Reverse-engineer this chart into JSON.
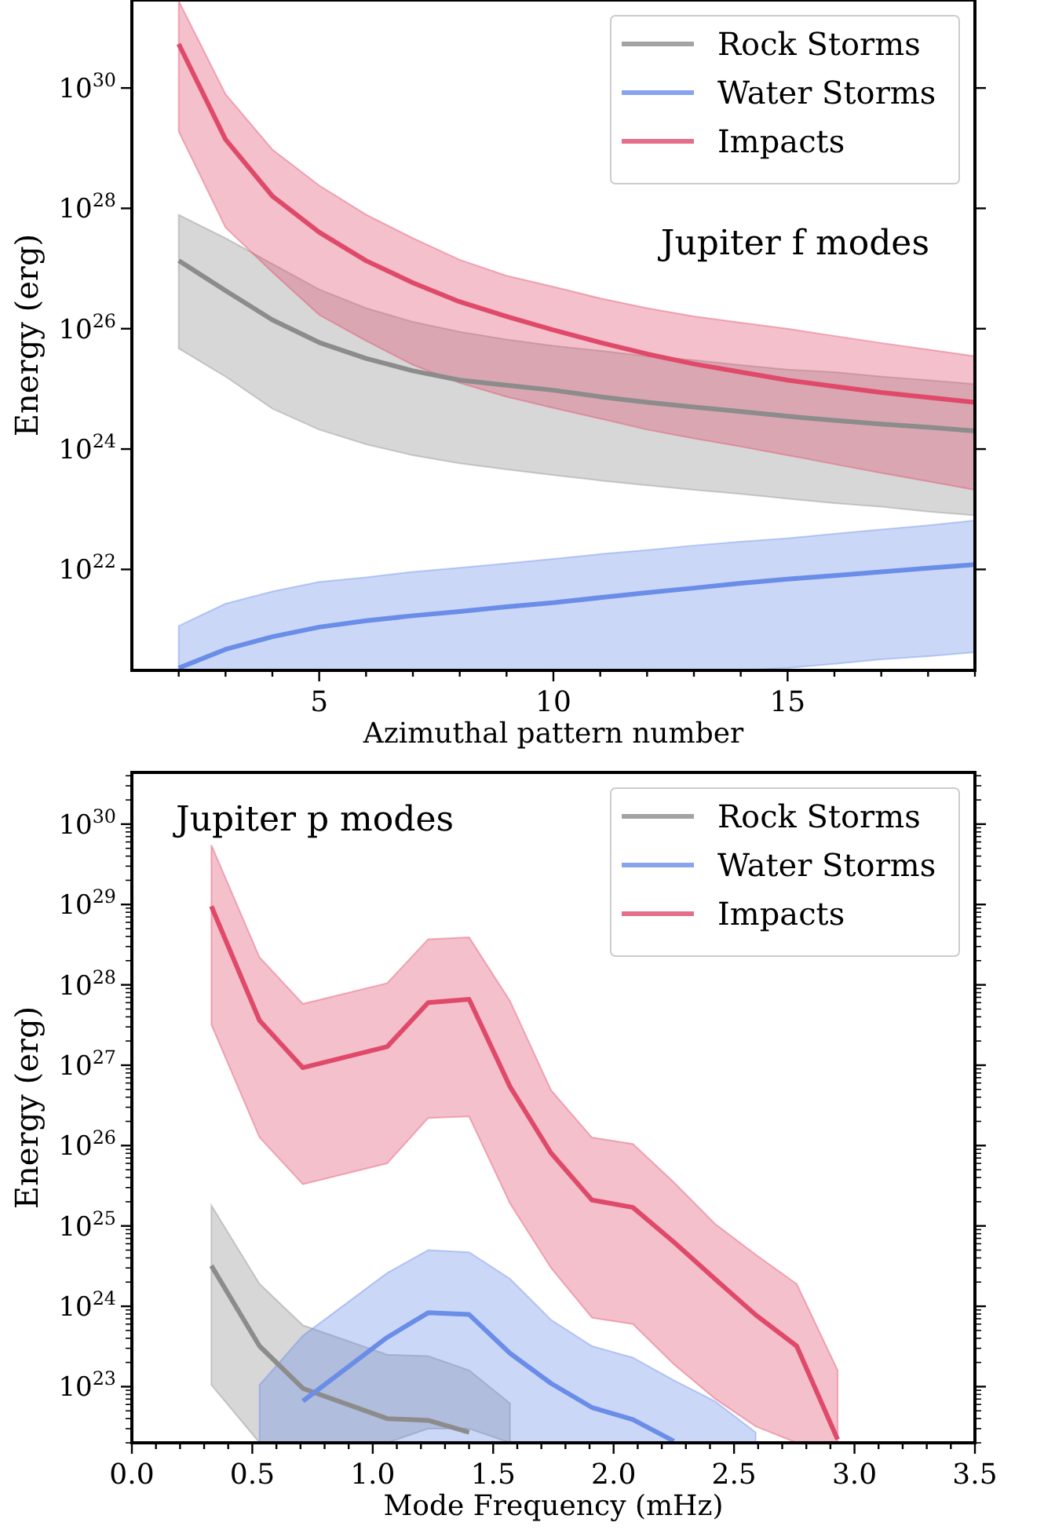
{
  "chart_data": [
    {
      "type": "line",
      "annotations": [
        "Jupiter f modes"
      ],
      "xlabel": "Azimuthal pattern number",
      "ylabel": "Energy (erg)",
      "log": "y",
      "legend": "top right",
      "grid": false,
      "x": [
        2,
        3,
        4,
        5,
        6,
        7,
        8,
        9,
        10,
        11,
        12,
        13,
        14,
        15,
        16,
        17,
        18,
        19
      ],
      "xlim": [
        1,
        19
      ],
      "xticks": [
        {
          "value": 2,
          "label": null
        },
        {
          "value": 3,
          "label": null
        },
        {
          "value": 4,
          "label": null
        },
        5,
        {
          "value": 6,
          "label": null
        },
        {
          "value": 7,
          "label": null
        },
        {
          "value": 8,
          "label": null
        },
        {
          "value": 9,
          "label": null
        },
        10,
        {
          "value": 11,
          "label": null
        },
        {
          "value": 12,
          "label": null
        },
        {
          "value": 13,
          "label": null
        },
        {
          "value": 14,
          "label": null
        },
        15,
        {
          "value": 16,
          "label": null
        },
        {
          "value": 17,
          "label": null
        },
        {
          "value": 18,
          "label": null
        },
        {
          "value": 19,
          "label": null
        }
      ],
      "ylim": [
        2.1e+20,
        2.9e+31
      ],
      "yticks": [
        {
          "value": 1e+22,
          "label": "10$^{22}$"
        },
        {
          "value": 1e+24,
          "label": "10$^{24}$"
        },
        {
          "value": 1e+26,
          "label": "10$^{26}$"
        },
        {
          "value": 1e+28,
          "label": "10$^{28}$"
        },
        {
          "value": 1e+30,
          "label": "10$^{30}$"
        }
      ],
      "series": [
        {
          "name": "Rock Storms",
          "color": "#8c8c8c",
          "values": [
            1.35e+27,
            4.3e+26,
            1.4e+26,
            5.9e+25,
            3.2e+25,
            2e+25,
            1.4e+25,
            1.15e+25,
            9.5e+24,
            7.4e+24,
            6e+24,
            5e+24,
            4.2e+24,
            3.5e+24,
            3e+24,
            2.6e+24,
            2.3e+24,
            2e+24
          ],
          "upper": [
            7.8e+27,
            3.2e+27,
            1.2e+27,
            4.5e+26,
            2.2e+26,
            1.3e+26,
            8.9e+25,
            6.6e+25,
            5.2e+25,
            4.3e+25,
            3.5e+25,
            3e+25,
            2.5e+25,
            2.1e+25,
            1.9e+25,
            1.6e+25,
            1.4e+25,
            1.2e+25
          ],
          "lower": [
            4.7e+25,
            1.6e+25,
            4.7e+24,
            2.1e+24,
            1.2e+24,
            7.9e+23,
            5.8e+23,
            4.6e+23,
            3.7e+23,
            3e+23,
            2.5e+23,
            2.1e+23,
            1.8e+23,
            1.5e+23,
            1.26e+23,
            1.1e+23,
            9.1e+22,
            7.9e+22
          ]
        },
        {
          "name": "Water Storms",
          "color": "#6a8de8",
          "values": [
            2.3e+20,
            4.7e+20,
            7.6e+20,
            1.1e+21,
            1.4e+21,
            1.7e+21,
            2e+21,
            2.4e+21,
            2.8e+21,
            3.4e+21,
            4.1e+21,
            4.9e+21,
            5.9e+21,
            6.9e+21,
            7.9e+21,
            9.1e+21,
            1.05e+22,
            1.2e+22
          ],
          "upper": [
            1.15e+21,
            2.7e+21,
            4.3e+21,
            6.2e+21,
            7.4e+21,
            9.1e+21,
            1.07e+22,
            1.26e+22,
            1.5e+22,
            1.8e+22,
            2.1e+22,
            2.5e+22,
            2.9e+22,
            3.3e+22,
            3.9e+22,
            4.6e+22,
            5.4e+22,
            6.5e+22
          ],
          "lower": [
            2.1e+20,
            2.1e+20,
            2.1e+20,
            2.1e+20,
            2.1e+20,
            2.1e+20,
            2.1e+20,
            2.1e+20,
            2.1e+20,
            2.1e+20,
            2.1e+20,
            2.1e+20,
            2.1e+20,
            2.3e+20,
            2.7e+20,
            3.2e+20,
            3.6e+20,
            4.2e+20
          ]
        },
        {
          "name": "Impacts",
          "color": "#e04a6a",
          "values": [
            5.4e+30,
            1.4e+29,
            1.6e+28,
            4e+27,
            1.35e+27,
            5.8e+26,
            2.8e+26,
            1.6e+26,
            9.5e+25,
            5.9e+25,
            3.8e+25,
            2.6e+25,
            1.9e+25,
            1.4e+25,
            1.1e+25,
            8.7e+24,
            7.2e+24,
            6e+24
          ],
          "upper": [
            2.8e+31,
            7.9e+29,
            9.5e+28,
            2.4e+28,
            7.9e+27,
            3.2e+27,
            1.4e+27,
            7.6e+26,
            5e+26,
            3.2e+26,
            2.2e+26,
            1.6e+26,
            1.26e+26,
            1e+26,
            7.6e+25,
            5.8e+25,
            4.5e+25,
            3.5e+25
          ],
          "lower": [
            1.9e+29,
            4.8e+27,
            8.7e+26,
            1.7e+26,
            6.3e+25,
            2.5e+25,
            1.26e+25,
            7.4e+24,
            4.8e+24,
            3.2e+24,
            2.1e+24,
            1.5e+24,
            1.1e+24,
            7.9e+23,
            5.6e+23,
            4e+23,
            2.9e+23,
            2.1e+23
          ]
        }
      ]
    },
    {
      "type": "line",
      "annotations": [
        "Jupiter p modes"
      ],
      "xlabel": "Mode Frequency (mHz)",
      "ylabel": "Energy (erg)",
      "log": "y",
      "legend": "top right",
      "grid": false,
      "x": [
        0.33,
        0.53,
        0.71,
        1.06,
        1.23,
        1.4,
        1.57,
        1.74,
        1.91,
        2.08,
        2.25,
        2.42,
        2.59,
        2.76,
        2.93
      ],
      "xlim": [
        0,
        3.5
      ],
      "xticks": [
        {
          "value": 0,
          "label": "0.0"
        },
        {
          "value": 0.1,
          "label": null
        },
        {
          "value": 0.2,
          "label": null
        },
        {
          "value": 0.3,
          "label": null
        },
        {
          "value": 0.4,
          "label": null
        },
        0.5,
        {
          "value": 0.6,
          "label": null
        },
        {
          "value": 0.7,
          "label": null
        },
        {
          "value": 0.8,
          "label": null
        },
        {
          "value": 0.9,
          "label": null
        },
        {
          "value": 1,
          "label": "1.0"
        },
        {
          "value": 1.1,
          "label": null
        },
        {
          "value": 1.2,
          "label": null
        },
        {
          "value": 1.3,
          "label": null
        },
        {
          "value": 1.4,
          "label": null
        },
        1.5,
        {
          "value": 1.6,
          "label": null
        },
        {
          "value": 1.7,
          "label": null
        },
        {
          "value": 1.8,
          "label": null
        },
        {
          "value": 1.9,
          "label": null
        },
        {
          "value": 2,
          "label": "2.0"
        },
        {
          "value": 2.1,
          "label": null
        },
        {
          "value": 2.2,
          "label": null
        },
        {
          "value": 2.3,
          "label": null
        },
        {
          "value": 2.4,
          "label": null
        },
        2.5,
        {
          "value": 2.6,
          "label": null
        },
        {
          "value": 2.7,
          "label": null
        },
        {
          "value": 2.8,
          "label": null
        },
        {
          "value": 2.9,
          "label": null
        },
        {
          "value": 3,
          "label": "3.0"
        },
        {
          "value": 3.1,
          "label": null
        },
        {
          "value": 3.2,
          "label": null
        },
        {
          "value": 3.3,
          "label": null
        },
        {
          "value": 3.4,
          "label": null
        },
        3.5
      ],
      "ylim": [
        2e+22,
        4.4e+30
      ],
      "yticks": [
        {
          "value": 1e+23,
          "label": "10$^{23}$"
        },
        {
          "value": 1e+24,
          "label": "10$^{24}$"
        },
        {
          "value": 1e+25,
          "label": "10$^{25}$"
        },
        {
          "value": 1e+26,
          "label": "10$^{26}$"
        },
        {
          "value": 1e+27,
          "label": "10$^{27}$"
        },
        {
          "value": 1e+28,
          "label": "10$^{28}$"
        },
        {
          "value": 1e+29,
          "label": "10$^{29}$"
        },
        {
          "value": 1e+30,
          "label": "10$^{30}$"
        }
      ],
      "series": [
        {
          "name": "Rock Storms",
          "color": "#8c8c8c",
          "x": [
            0.33,
            0.53,
            0.71,
            1.06,
            1.23,
            1.4,
            1.57
          ],
          "values": [
            3.2e+24,
            3.2e+23,
            9.5e+22,
            4e+22,
            3.8e+22,
            2.7e+22,
            null
          ],
          "upper": [
            1.8e+25,
            1.9e+24,
            5.8e+23,
            2.5e+23,
            2.4e+23,
            1.6e+23,
            6.2e+22
          ],
          "lower": [
            1.05e+23,
            2e+22,
            2e+22,
            2e+22,
            3e+22,
            3e+22,
            2e+22
          ]
        },
        {
          "name": "Water Storms",
          "color": "#6a8de8",
          "x": [
            0.53,
            0.71,
            1.06,
            1.23,
            1.4,
            1.57,
            1.74,
            1.91,
            2.08,
            2.25,
            2.42,
            2.59
          ],
          "values": [
            null,
            6.6e+22,
            4.1e+23,
            8.3e+23,
            7.9e+23,
            2.6e+23,
            1.1e+23,
            5.5e+22,
            3.9e+22,
            2.1e+22,
            null,
            null
          ],
          "upper": [
            1.05e+23,
            4.3e+23,
            2.6e+24,
            5e+24,
            4.7e+24,
            2.2e+24,
            6.8e+23,
            3.2e+23,
            2.3e+23,
            1.2e+23,
            6.6e+22,
            2.7e+22
          ],
          "lower": [
            2e+22,
            2e+22,
            2e+22,
            2e+22,
            2e+22,
            2e+22,
            2e+22,
            2e+22,
            2e+22,
            2e+22,
            2e+22,
            2e+22
          ]
        },
        {
          "name": "Impacts",
          "color": "#e04a6a",
          "values": [
            9.5e+28,
            3.6e+27,
            9.3e+26,
            1.7e+27,
            6e+27,
            6.6e+27,
            5.4e+26,
            8.1e+25,
            2.1e+25,
            1.7e+25,
            6.3e+24,
            2.2e+24,
            7.8e+23,
            3.2e+23,
            2.2e+22
          ],
          "upper": [
            5.5e+29,
            2.2e+28,
            5.8e+27,
            1.05e+28,
            3.7e+28,
            3.9e+28,
            6.3e+27,
            4.9e+26,
            1.26e+26,
            1.05e+26,
            3.5e+25,
            1.07e+25,
            4.4e+24,
            1.9e+24,
            1.6e+23
          ],
          "lower": [
            3.2e+27,
            1.26e+26,
            3.3e+25,
            6e+25,
            2.2e+26,
            2.3e+26,
            1.9e+25,
            3e+24,
            7.2e+23,
            6e+23,
            1.9e+23,
            7.1e+22,
            3.2e+22,
            2e+22,
            2e+22
          ]
        }
      ]
    }
  ]
}
